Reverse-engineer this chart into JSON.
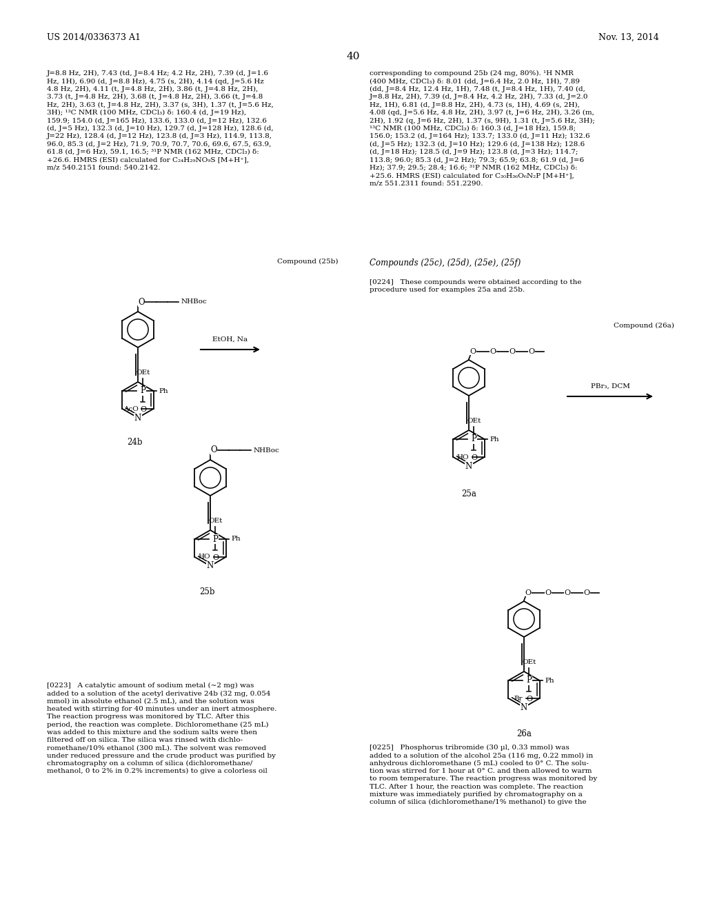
{
  "page_header_left": "US 2014/0336373 A1",
  "page_header_right": "Nov. 13, 2014",
  "page_number": "40",
  "background_color": "#ffffff",
  "left_col_text": "J=8.8 Hz, 2H), 7.43 (td, J=8.4 Hz; 4.2 Hz, 2H), 7.39 (d, J=1.6\nHz, 1H), 6.90 (d, J=8.8 Hz), 4.75 (s, 2H), 4.14 (qd, J=5.6 Hz\n4.8 Hz, 2H), 4.11 (t, J=4.8 Hz, 2H), 3.86 (t, J=4.8 Hz, 2H),\n3.73 (t, J=4.8 Hz, 2H), 3.68 (t, J=4.8 Hz, 2H), 3.66 (t, J=4.8\nHz, 2H), 3.63 (t, J=4.8 Hz, 2H), 3.37 (s, 3H), 1.37 (t, J=5.6 Hz,\n3H); ¹³C NMR (100 MHz, CDCl₃) δ: 160.4 (d, J=19 Hz),\n159.9; 154.0 (d, J=165 Hz), 133.6, 133.0 (d, J=12 Hz), 132.6\n(d, J=5 Hz), 132.3 (d, J=10 Hz), 129.7 (d, J=128 Hz), 128.6 (d,\nJ=22 Hz), 128.4 (d, J=12 Hz), 123.8 (d, J=3 Hz), 114.9, 113.8,\n96.0, 85.3 (d, J=2 Hz), 71.9, 70.9, 70.7, 70.6, 69.6, 67.5, 63.9,\n61.8 (d, J=6 Hz), 59.1, 16.5; ³¹P NMR (162 MHz, CDCl₃) δ:\n+26.6. HMRS (ESI) calculated for C₂₄H₂₉NO₉S [M+H⁺],\nm/z 540.2151 found: 540.2142.",
  "right_col_text": "corresponding to compound 25b (24 mg, 80%). ¹H NMR\n(400 MHz, CDCl₃) δ: 8.01 (dd, J=6.4 Hz, 2.0 Hz, 1H), 7.89\n(dd, J=8.4 Hz, 12.4 Hz, 1H), 7.48 (t, J=8.4 Hz, 1H), 7.40 (d,\nJ=8.8 Hz, 2H), 7.39 (d, J=8.4 Hz, 4.2 Hz, 2H), 7.33 (d, J=2.0\nHz, 1H), 6.81 (d, J=8.8 Hz, 2H), 4.73 (s, 1H), 4.69 (s, 2H),\n4.08 (qd, J=5.6 Hz, 4.8 Hz, 2H), 3.97 (t, J=6 Hz, 2H), 3.26 (m,\n2H), 1.92 (q, J=6 Hz, 2H), 1.37 (s, 9H), 1.31 (t, J=5.6 Hz, 3H);\n¹³C NMR (100 MHz, CDCl₃) δ: 160.3 (d, J=18 Hz), 159.8;\n156.0; 153.2 (d, J=164 Hz); 133.7; 133.0 (d, J=11 Hz); 132.6\n(d, J=5 Hz); 132.3 (d, J=10 Hz); 129.6 (d, J=138 Hz); 128.6\n(d, J=18 Hz); 128.5 (d, J=9 Hz); 123.8 (d, J=3 Hz); 114.7;\n113.8; 96.0; 85.3 (d, J=2 Hz); 79.3; 65.9; 63.8; 61.9 (d, J=6\nHz); 37.9; 29.5; 28.4; 16.6; ³¹P NMR (162 MHz, CDCl₃) δ:\n+25.6. HMRS (ESI) calculated for C₃₀H₃₆O₆N₂P [M+H⁺],\nm/z 551.2311 found: 551.2290.",
  "para_0223": "[0223]   A catalytic amount of sodium metal (~2 mg) was\nadded to a solution of the acetyl derivative 24b (32 mg, 0.054\nmmol) in absolute ethanol (2.5 mL), and the solution was\nheated with stirring for 40 minutes under an inert atmosphere.\nThe reaction progress was monitored by TLC. After this\nperiod, the reaction was complete. Dichloromethane (25 mL)\nwas added to this mixture and the sodium salts were then\nfiltered off on silica. The silica was rinsed with dichlo-\nromethane/10% ethanol (300 mL). The solvent was removed\nunder reduced pressure and the crude product was purified by\nchromatography on a column of silica (dichloromethane/\nmethanol, 0 to 2% in 0.2% increments) to give a colorless oil",
  "para_0225": "[0225]   Phosphorus tribromide (30 µl, 0.33 mmol) was\nadded to a solution of the alcohol 25a (116 mg, 0.22 mmol) in\nanhydrous dichloromethane (5 mL) cooled to 0° C. The solu-\ntion was stirred for 1 hour at 0° C. and then allowed to warm\nto room temperature. The reaction progress was monitored by\nTLC. After 1 hour, the reaction was complete. The reaction\nmixture was immediately purified by chromatography on a\ncolumn of silica (dichloromethane/1% methanol) to give the"
}
